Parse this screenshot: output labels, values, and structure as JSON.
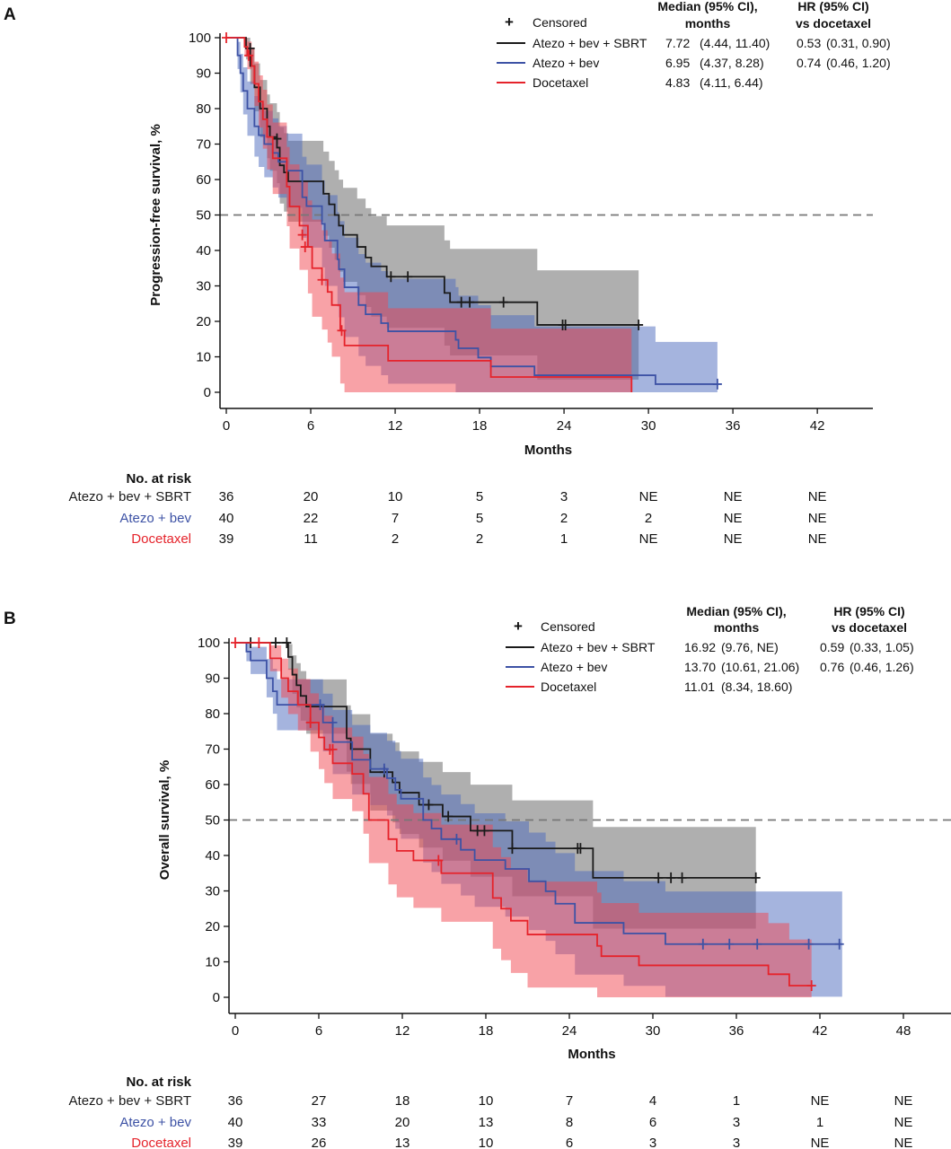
{
  "colors": {
    "sbrt": "#1a1a1a",
    "bev": "#3d52a5",
    "doc": "#e5232b",
    "sbrt_band": "rgba(110,110,110,0.55)",
    "bev_band": "rgba(75,105,190,0.5)",
    "doc_band": "rgba(242,70,80,0.5)"
  },
  "chart_data": [
    {
      "type": "line",
      "panel": "A",
      "ylabel": "Progression-free survival, %",
      "xlabel": "Months",
      "xlim": [
        0,
        46
      ],
      "ylim": [
        0,
        100
      ],
      "xticks": [
        0,
        6,
        12,
        18,
        24,
        30,
        36,
        42
      ],
      "yticks": [
        0,
        10,
        20,
        30,
        40,
        50,
        60,
        70,
        80,
        90,
        100
      ],
      "reference_line": 50,
      "legend": {
        "censored_symbol": "+",
        "censored_label": "Censored",
        "median_header": [
          "Median (95% CI),",
          "months"
        ],
        "hr_header": [
          "HR (95% CI)",
          "vs docetaxel"
        ]
      },
      "series": [
        {
          "key": "sbrt",
          "name": "Atezo + bev + SBRT",
          "median": "7.72",
          "median_ci": "(4.44, 11.40)",
          "hr": "0.53",
          "hr_ci": "(0.31, 0.90)",
          "n": 36,
          "steps": [
            [
              0,
              100
            ],
            [
              1.4,
              97
            ],
            [
              1.7,
              92
            ],
            [
              2.0,
              86
            ],
            [
              2.4,
              80
            ],
            [
              2.9,
              75
            ],
            [
              3.1,
              72
            ],
            [
              3.6,
              69
            ],
            [
              3.8,
              64
            ],
            [
              4.1,
              62
            ],
            [
              4.4,
              59.5
            ],
            [
              6.9,
              56
            ],
            [
              7.3,
              53
            ],
            [
              7.7,
              50
            ],
            [
              8.0,
              47
            ],
            [
              8.3,
              44.4
            ],
            [
              9.3,
              41
            ],
            [
              9.9,
              38
            ],
            [
              10.3,
              35.5
            ],
            [
              11.4,
              32.6
            ],
            [
              15.5,
              28
            ],
            [
              15.9,
              25.4
            ],
            [
              22.1,
              19
            ],
            [
              29.3,
              19
            ]
          ],
          "censored": [
            [
              1.7,
              97
            ],
            [
              3.6,
              71.5
            ],
            [
              11.7,
              32.6
            ],
            [
              12.9,
              32.6
            ],
            [
              16.7,
              25.4
            ],
            [
              17.3,
              25.4
            ],
            [
              19.7,
              25.4
            ],
            [
              23.9,
              19
            ],
            [
              24.1,
              19
            ],
            [
              29.3,
              19
            ]
          ]
        },
        {
          "key": "bev",
          "name": "Atezo + bev",
          "median": "6.95",
          "median_ci": "(4.37, 8.28)",
          "hr": "0.74",
          "hr_ci": "(0.46, 1.20)",
          "n": 40,
          "steps": [
            [
              0,
              100
            ],
            [
              0.8,
              95
            ],
            [
              1.0,
              90
            ],
            [
              1.2,
              85
            ],
            [
              1.5,
              80
            ],
            [
              2.0,
              75
            ],
            [
              2.3,
              72.5
            ],
            [
              2.7,
              70
            ],
            [
              3.3,
              67.5
            ],
            [
              3.7,
              65
            ],
            [
              4.3,
              62.5
            ],
            [
              5.4,
              55
            ],
            [
              5.7,
              52.5
            ],
            [
              6.8,
              47.5
            ],
            [
              7.0,
              42.8
            ],
            [
              7.9,
              37.5
            ],
            [
              8.0,
              34.7
            ],
            [
              8.4,
              29.6
            ],
            [
              9.4,
              24.6
            ],
            [
              9.9,
              22
            ],
            [
              11.0,
              19.5
            ],
            [
              11.5,
              17.2
            ],
            [
              16.3,
              14.8
            ],
            [
              16.5,
              12.4
            ],
            [
              17.9,
              9.8
            ],
            [
              18.8,
              7.3
            ],
            [
              21.9,
              4.8
            ],
            [
              30.5,
              2.3
            ],
            [
              34.9,
              2.3
            ]
          ],
          "censored": [
            [
              34.9,
              2.3
            ]
          ]
        },
        {
          "key": "doc",
          "name": "Docetaxel",
          "median": "4.83",
          "median_ci": "(4.11, 6.44)",
          "hr": "",
          "hr_ci": "",
          "n": 39,
          "steps": [
            [
              0,
              100
            ],
            [
              1.3,
              97.4
            ],
            [
              1.5,
              95
            ],
            [
              1.8,
              92
            ],
            [
              2.0,
              87
            ],
            [
              2.3,
              82
            ],
            [
              2.6,
              77
            ],
            [
              2.9,
              72
            ],
            [
              3.3,
              66
            ],
            [
              4.3,
              58
            ],
            [
              4.5,
              52.4
            ],
            [
              5.2,
              47
            ],
            [
              5.8,
              41
            ],
            [
              6.1,
              35
            ],
            [
              6.8,
              31.7
            ],
            [
              7.2,
              28.3
            ],
            [
              7.5,
              24.6
            ],
            [
              8.1,
              17.4
            ],
            [
              8.4,
              13.2
            ],
            [
              11.5,
              8.9
            ],
            [
              18.8,
              4.3
            ],
            [
              28.8,
              4.3
            ],
            [
              28.8,
              0
            ]
          ],
          "censored": [
            [
              0,
              100
            ],
            [
              1.6,
              95
            ],
            [
              5.4,
              44.4
            ],
            [
              5.6,
              41
            ],
            [
              6.8,
              31.7
            ],
            [
              8.2,
              17.4
            ]
          ]
        }
      ],
      "risk_table": {
        "title": "No. at risk",
        "rows": [
          {
            "key": "sbrt",
            "label": "Atezo + bev + SBRT",
            "values": [
              "36",
              "20",
              "10",
              "5",
              "3",
              "NE",
              "NE",
              "NE"
            ]
          },
          {
            "key": "bev",
            "label": "Atezo + bev",
            "values": [
              "40",
              "22",
              "7",
              "5",
              "2",
              "2",
              "NE",
              "NE"
            ]
          },
          {
            "key": "doc",
            "label": "Docetaxel",
            "values": [
              "39",
              "11",
              "2",
              "2",
              "1",
              "NE",
              "NE",
              "NE"
            ]
          }
        ]
      }
    },
    {
      "type": "line",
      "panel": "B",
      "ylabel": "Overall survival, %",
      "xlabel": "Months",
      "xlim": [
        0,
        51
      ],
      "ylim": [
        0,
        100
      ],
      "xticks": [
        0,
        6,
        12,
        18,
        24,
        30,
        36,
        42,
        48
      ],
      "yticks": [
        0,
        10,
        20,
        30,
        40,
        50,
        60,
        70,
        80,
        90,
        100
      ],
      "reference_line": 50,
      "legend": {
        "censored_symbol": "+",
        "censored_label": "Censored",
        "median_header": [
          "Median (95% CI),",
          "months"
        ],
        "hr_header": [
          "HR (95% CI)",
          "vs docetaxel"
        ]
      },
      "series": [
        {
          "key": "sbrt",
          "name": "Atezo + bev + SBRT",
          "median": "16.92",
          "median_ci": "(9.76, NE)",
          "hr": "0.59",
          "hr_ci": "(0.33, 1.05)",
          "n": 36,
          "steps": [
            [
              0,
              100
            ],
            [
              3.8,
              96
            ],
            [
              4.1,
              91
            ],
            [
              4.4,
              88
            ],
            [
              4.7,
              85
            ],
            [
              5.1,
              82
            ],
            [
              8.0,
              73
            ],
            [
              8.3,
              70
            ],
            [
              9.7,
              63.5
            ],
            [
              11.3,
              60.6
            ],
            [
              11.8,
              57.7
            ],
            [
              13.2,
              54.3
            ],
            [
              14.9,
              51
            ],
            [
              16.9,
              47
            ],
            [
              19.9,
              42
            ],
            [
              25.7,
              33.7
            ],
            [
              37.4,
              33.7
            ]
          ],
          "censored": [
            [
              1.1,
              100
            ],
            [
              2.9,
              100
            ],
            [
              3.7,
              100
            ],
            [
              10.7,
              63.5
            ],
            [
              13.9,
              54.3
            ],
            [
              15.3,
              51
            ],
            [
              17.4,
              47
            ],
            [
              17.9,
              47
            ],
            [
              19.9,
              42
            ],
            [
              24.6,
              42
            ],
            [
              24.8,
              42
            ],
            [
              30.4,
              33.7
            ],
            [
              31.3,
              33.7
            ],
            [
              32.1,
              33.7
            ],
            [
              37.4,
              33.7
            ]
          ]
        },
        {
          "key": "bev",
          "name": "Atezo + bev",
          "median": "13.70",
          "median_ci": "(10.61, 21.06)",
          "hr": "0.76",
          "hr_ci": "(0.46, 1.26)",
          "n": 40,
          "steps": [
            [
              0,
              100
            ],
            [
              0.8,
              97.5
            ],
            [
              1.1,
              95
            ],
            [
              2.25,
              90
            ],
            [
              2.7,
              86.3
            ],
            [
              3.0,
              82.5
            ],
            [
              6.3,
              77.5
            ],
            [
              7.0,
              72
            ],
            [
              8.4,
              67
            ],
            [
              9.7,
              64.4
            ],
            [
              10.9,
              61.8
            ],
            [
              11.5,
              58.5
            ],
            [
              11.9,
              56
            ],
            [
              13.5,
              50
            ],
            [
              14.1,
              47.6
            ],
            [
              14.8,
              44.6
            ],
            [
              16.2,
              41.6
            ],
            [
              17.2,
              38.7
            ],
            [
              19.4,
              36.2
            ],
            [
              21.1,
              32.7
            ],
            [
              22.3,
              29.9
            ],
            [
              23.0,
              26.4
            ],
            [
              24.4,
              21
            ],
            [
              27.9,
              18
            ],
            [
              30.9,
              15
            ],
            [
              43.6,
              15
            ]
          ],
          "censored": [
            [
              6.1,
              82.5
            ],
            [
              7.0,
              77.5
            ],
            [
              10.7,
              64.4
            ],
            [
              15.9,
              44.6
            ],
            [
              33.6,
              15
            ],
            [
              35.5,
              15
            ],
            [
              37.5,
              15
            ],
            [
              41.2,
              15
            ],
            [
              43.4,
              15
            ]
          ]
        },
        {
          "key": "doc",
          "name": "Docetaxel",
          "median": "11.01",
          "median_ci": "(8.34, 18.60)",
          "hr": "",
          "hr_ci": "",
          "n": 39,
          "steps": [
            [
              0,
              100
            ],
            [
              2.5,
              95.6
            ],
            [
              3.3,
              90
            ],
            [
              3.8,
              86.3
            ],
            [
              4.5,
              82.5
            ],
            [
              5.4,
              77.5
            ],
            [
              6.0,
              73.3
            ],
            [
              6.4,
              69.9
            ],
            [
              7.0,
              66
            ],
            [
              8.4,
              63
            ],
            [
              9.2,
              57.4
            ],
            [
              9.6,
              50
            ],
            [
              11.0,
              44.6
            ],
            [
              11.6,
              41.3
            ],
            [
              12.8,
              38.6
            ],
            [
              14.8,
              35
            ],
            [
              18.5,
              28
            ],
            [
              19.1,
              25
            ],
            [
              19.8,
              21.6
            ],
            [
              21.0,
              17.7
            ],
            [
              26.0,
              14.5
            ],
            [
              26.3,
              11.6
            ],
            [
              29.0,
              9
            ],
            [
              38.3,
              6.5
            ],
            [
              39.8,
              3.3
            ],
            [
              41.4,
              3.3
            ]
          ],
          "censored": [
            [
              0,
              100
            ],
            [
              1.7,
              100
            ],
            [
              5.4,
              77.5
            ],
            [
              6.8,
              69.9
            ],
            [
              7.0,
              69.9
            ],
            [
              14.6,
              38.6
            ],
            [
              41.4,
              3.3
            ]
          ]
        }
      ],
      "risk_table": {
        "title": "No. at risk",
        "rows": [
          {
            "key": "sbrt",
            "label": "Atezo + bev + SBRT",
            "values": [
              "36",
              "27",
              "18",
              "10",
              "7",
              "4",
              "1",
              "NE",
              "NE"
            ]
          },
          {
            "key": "bev",
            "label": "Atezo + bev",
            "values": [
              "40",
              "33",
              "20",
              "13",
              "8",
              "6",
              "3",
              "1",
              "NE"
            ]
          },
          {
            "key": "doc",
            "label": "Docetaxel",
            "values": [
              "39",
              "26",
              "13",
              "10",
              "6",
              "3",
              "3",
              "NE",
              "NE"
            ]
          }
        ]
      }
    }
  ]
}
